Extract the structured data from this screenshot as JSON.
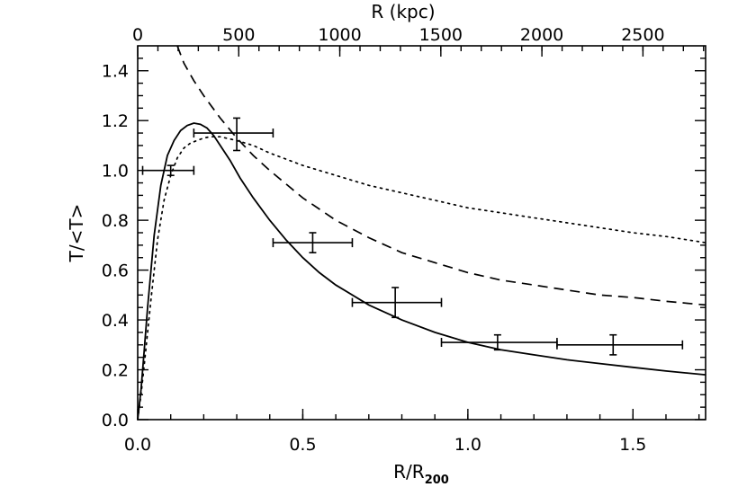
{
  "chart_data": {
    "type": "line",
    "title": "",
    "xlabel": "R/R",
    "xlabel_subscript": "200",
    "ylabel": "T/<T>",
    "x2label": "R (kpc)",
    "xlim": [
      0,
      1.72
    ],
    "ylim": [
      0,
      1.5
    ],
    "x2lim": [
      0,
      2810
    ],
    "xticks": [
      0.0,
      0.5,
      1.0,
      1.5
    ],
    "xtick_labels": [
      "0.0",
      "0.5",
      "1.0",
      "1.5"
    ],
    "yticks": [
      0.0,
      0.2,
      0.4,
      0.6,
      0.8,
      1.0,
      1.2,
      1.4
    ],
    "ytick_labels": [
      "0.0",
      "0.2",
      "0.4",
      "0.6",
      "0.8",
      "1.0",
      "1.2",
      "1.4"
    ],
    "x2ticks": [
      0,
      500,
      1000,
      1500,
      2000,
      2500
    ],
    "x2tick_labels": [
      "0",
      "500",
      "1000",
      "1500",
      "2000",
      "2500"
    ],
    "grid": false,
    "series": [
      {
        "name": "solid",
        "style": "solid",
        "x": [
          0.0,
          0.01,
          0.02,
          0.03,
          0.05,
          0.07,
          0.09,
          0.11,
          0.13,
          0.15,
          0.17,
          0.19,
          0.21,
          0.23,
          0.25,
          0.28,
          0.31,
          0.35,
          0.4,
          0.45,
          0.5,
          0.55,
          0.6,
          0.7,
          0.8,
          0.9,
          1.0,
          1.1,
          1.2,
          1.3,
          1.4,
          1.5,
          1.6,
          1.72
        ],
        "y": [
          0.0,
          0.12,
          0.28,
          0.45,
          0.74,
          0.94,
          1.06,
          1.12,
          1.16,
          1.18,
          1.19,
          1.185,
          1.17,
          1.14,
          1.1,
          1.04,
          0.97,
          0.89,
          0.8,
          0.72,
          0.65,
          0.59,
          0.54,
          0.46,
          0.4,
          0.35,
          0.31,
          0.28,
          0.26,
          0.24,
          0.225,
          0.21,
          0.195,
          0.18
        ]
      },
      {
        "name": "dashed",
        "style": "dashed",
        "x": [
          0.12,
          0.14,
          0.17,
          0.2,
          0.25,
          0.3,
          0.35,
          0.4,
          0.5,
          0.6,
          0.7,
          0.8,
          0.9,
          1.0,
          1.1,
          1.2,
          1.3,
          1.4,
          1.5,
          1.6,
          1.72
        ],
        "y": [
          1.5,
          1.43,
          1.36,
          1.3,
          1.21,
          1.13,
          1.06,
          1.0,
          0.89,
          0.8,
          0.73,
          0.67,
          0.63,
          0.59,
          0.56,
          0.54,
          0.52,
          0.5,
          0.49,
          0.475,
          0.46
        ]
      },
      {
        "name": "dotted",
        "style": "dotted",
        "x": [
          0.0,
          0.01,
          0.02,
          0.04,
          0.06,
          0.08,
          0.1,
          0.12,
          0.14,
          0.16,
          0.18,
          0.2,
          0.22,
          0.25,
          0.3,
          0.35,
          0.4,
          0.5,
          0.6,
          0.7,
          0.8,
          0.9,
          1.0,
          1.1,
          1.2,
          1.3,
          1.4,
          1.5,
          1.6,
          1.72
        ],
        "y": [
          0.0,
          0.1,
          0.22,
          0.48,
          0.72,
          0.88,
          0.98,
          1.05,
          1.09,
          1.11,
          1.12,
          1.13,
          1.135,
          1.135,
          1.12,
          1.1,
          1.07,
          1.02,
          0.98,
          0.94,
          0.91,
          0.88,
          0.85,
          0.83,
          0.81,
          0.79,
          0.77,
          0.75,
          0.735,
          0.71
        ]
      }
    ],
    "data_points": [
      {
        "x": 0.1,
        "y": 1.0,
        "xerr": [
          0.015,
          0.17
        ],
        "yerr": [
          0.98,
          1.02
        ]
      },
      {
        "x": 0.3,
        "y": 1.15,
        "xerr": [
          0.17,
          0.41
        ],
        "yerr": [
          1.08,
          1.21
        ]
      },
      {
        "x": 0.53,
        "y": 0.71,
        "xerr": [
          0.41,
          0.65
        ],
        "yerr": [
          0.67,
          0.75
        ]
      },
      {
        "x": 0.78,
        "y": 0.47,
        "xerr": [
          0.65,
          0.92
        ],
        "yerr": [
          0.41,
          0.53
        ]
      },
      {
        "x": 1.09,
        "y": 0.31,
        "xerr": [
          0.92,
          1.27
        ],
        "yerr": [
          0.28,
          0.34
        ]
      },
      {
        "x": 1.44,
        "y": 0.3,
        "xerr": [
          1.27,
          1.65
        ],
        "yerr": [
          0.26,
          0.34
        ]
      }
    ]
  }
}
